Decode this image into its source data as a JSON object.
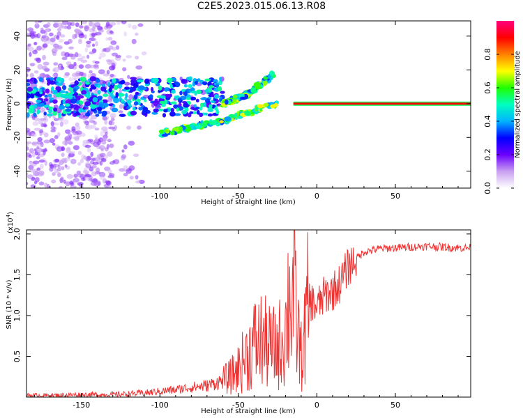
{
  "figure_title": "C2E5.2023.015.06.13.R08",
  "chart_data": [
    {
      "type": "heatmap",
      "title": "",
      "xlabel": "Height of straight line (km)",
      "ylabel": "Frequency (Hz)",
      "xlim": [
        -185,
        98
      ],
      "ylim": [
        -50,
        49
      ],
      "xticks": [
        -150,
        -100,
        -50,
        0,
        50
      ],
      "yticks": [
        -40,
        -20,
        0,
        20,
        40
      ],
      "grid": false,
      "colorbar": {
        "label": "Normalized spectral amplitude",
        "range": [
          0.0,
          1.0
        ],
        "ticks": [
          "0.0",
          "0.2",
          "0.4",
          "0.6",
          "0.8"
        ],
        "colors": [
          "#ffffff",
          "#c9a0f0",
          "#6a00ff",
          "#0000ff",
          "#00b4ff",
          "#00ffc0",
          "#20ff00",
          "#ffff00",
          "#ff8000",
          "#ff0000",
          "#ff0080"
        ]
      },
      "features": [
        {
          "name": "noise background",
          "x_range": [
            -185,
            -110
          ],
          "freq_range": [
            -50,
            49
          ],
          "amplitude": 0.12
        },
        {
          "name": "central band",
          "x_range": [
            -185,
            -60
          ],
          "freq": 4,
          "amplitude": 0.3
        },
        {
          "name": "lower branch",
          "x": [
            -100,
            -80,
            -60,
            -40,
            -25
          ],
          "freq": [
            -18,
            -14,
            -10,
            -4,
            0
          ],
          "amplitude": 0.45
        },
        {
          "name": "upper branch",
          "x": [
            -60,
            -45,
            -35,
            -28
          ],
          "freq": [
            0,
            5,
            12,
            17
          ],
          "amplitude": 0.45
        },
        {
          "name": "tone",
          "x_range": [
            -15,
            98
          ],
          "freq": 0,
          "amplitude": 0.9
        }
      ]
    },
    {
      "type": "line",
      "title": "",
      "xlabel": "Height of straight line (km)",
      "ylabel": "SNR (10 * v/v)",
      "multiplier_label": "(x10",
      "multiplier_exponent": "4",
      "xlim": [
        -185,
        98
      ],
      "ylim": [
        0,
        2.05
      ],
      "xticks": [
        -150,
        -100,
        -50,
        0,
        50
      ],
      "yticks": [
        0.5,
        1.0,
        1.5,
        2.0
      ],
      "grid": false,
      "series": [
        {
          "color": "#ee3333",
          "x": [
            -185,
            -170,
            -150,
            -130,
            -120,
            -110,
            -100,
            -90,
            -80,
            -70,
            -60,
            -55,
            -50,
            -45,
            -40,
            -35,
            -30,
            -25,
            -20,
            -18,
            -15,
            -13,
            -10,
            -8,
            -5,
            0,
            5,
            10,
            15,
            20,
            25,
            30,
            40,
            50,
            60,
            70,
            80,
            90,
            98
          ],
          "y": [
            0.02,
            0.02,
            0.03,
            0.03,
            0.04,
            0.05,
            0.07,
            0.09,
            0.12,
            0.14,
            0.2,
            0.25,
            0.35,
            0.5,
            0.65,
            0.7,
            0.6,
            0.6,
            0.8,
            1.2,
            1.3,
            0.9,
            0.5,
            0.7,
            1.2,
            1.1,
            1.25,
            1.3,
            1.4,
            1.6,
            1.7,
            1.78,
            1.82,
            1.83,
            1.84,
            1.85,
            1.84,
            1.83,
            1.83
          ]
        }
      ]
    }
  ]
}
